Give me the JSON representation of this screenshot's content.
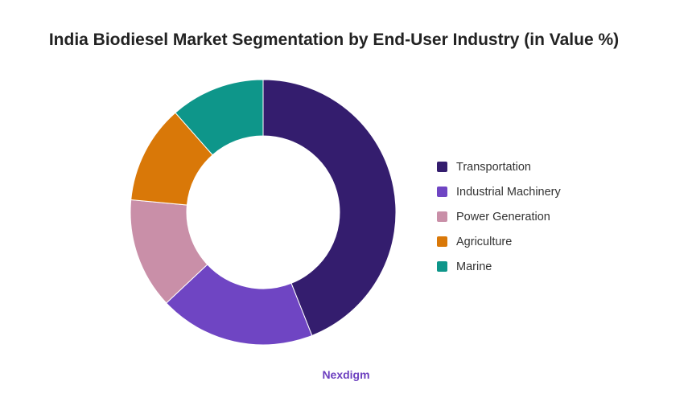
{
  "chart_data": {
    "type": "pie",
    "title": "India Biodiesel Market Segmentation by End-User Industry (in Value %)",
    "categories": [
      "Transportation",
      "Industrial Machinery",
      "Power Generation",
      "Agriculture",
      "Marine"
    ],
    "values": [
      44,
      19,
      13.5,
      12,
      11.5
    ],
    "colors": [
      "#341d6e",
      "#6f45c3",
      "#c98fa8",
      "#d97808",
      "#0e968a"
    ],
    "donut": true,
    "legend_position": "right"
  },
  "brand": "Nexdigm"
}
